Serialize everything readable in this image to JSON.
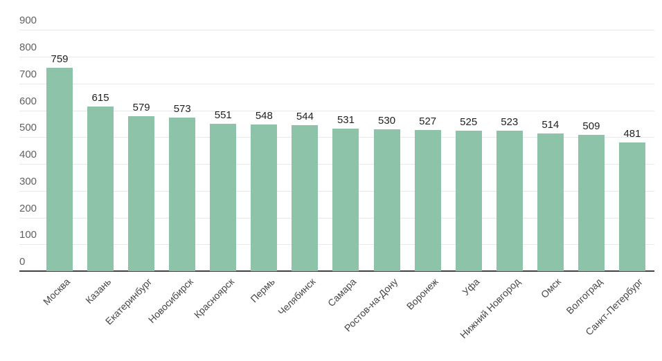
{
  "chart_data": {
    "type": "bar",
    "title": "",
    "xlabel": "",
    "ylabel": "",
    "categories": [
      "Москва",
      "Казань",
      "Екатеринбург",
      "Новосибирск",
      "Красноярск",
      "Пермь",
      "Челябинск",
      "Самара",
      "Ростов-на-Дону",
      "Воронеж",
      "Уфа",
      "Нижний Новгород",
      "Омск",
      "Волгоград",
      "Санкт-Петербург"
    ],
    "values": [
      759,
      615,
      579,
      573,
      551,
      548,
      544,
      531,
      530,
      527,
      525,
      523,
      514,
      509,
      481
    ],
    "value_labels_shown": true,
    "ylim": [
      0,
      900
    ],
    "yticks": [
      0,
      100,
      200,
      300,
      400,
      500,
      600,
      700,
      800,
      900
    ],
    "grid": true,
    "legend_position": "none",
    "colors": {
      "bar": "#8dc3a8",
      "gridline": "#e8e8e8",
      "axis_line": "#424242",
      "ytick_label": "#616161",
      "value_label": "#212121",
      "category_label": "#474747",
      "background": "#ffffff"
    }
  }
}
